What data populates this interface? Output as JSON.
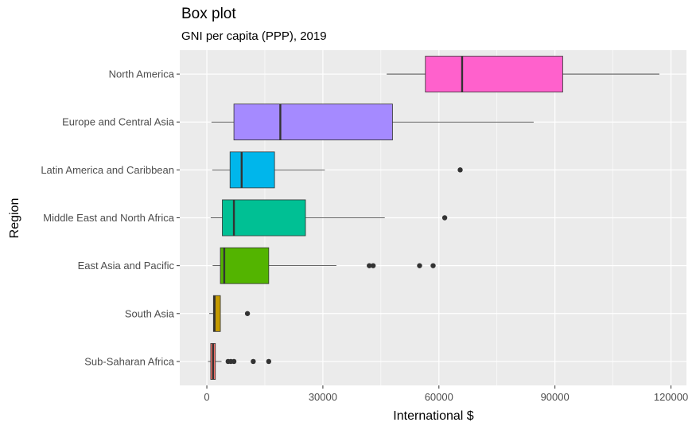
{
  "chart_data": {
    "type": "boxplot",
    "orientation": "horizontal",
    "title": "Box plot",
    "subtitle": "GNI per capita (PPP), 2019",
    "xlabel": "International $",
    "ylabel": "Region",
    "xlim": [
      -7000,
      124000
    ],
    "xticks": [
      0,
      30000,
      60000,
      90000,
      120000
    ],
    "xtick_labels": [
      "0",
      "30000",
      "60000",
      "90000",
      "120000"
    ],
    "grid": true,
    "legend": "none",
    "categories": [
      {
        "name": "North America",
        "color": "#FF61CC",
        "whisker_low": 46500,
        "q1": 56500,
        "median": 66000,
        "q3": 92000,
        "whisker_high": 117000,
        "outliers": []
      },
      {
        "name": "Europe and Central Asia",
        "color": "#A58AFF",
        "whisker_low": 1200,
        "q1": 7000,
        "median": 19000,
        "q3": 48000,
        "whisker_high": 84500,
        "outliers": []
      },
      {
        "name": "Latin America and Caribbean",
        "color": "#00B6EB",
        "whisker_low": 1400,
        "q1": 6000,
        "median": 9000,
        "q3": 17500,
        "whisker_high": 30500,
        "outliers": [
          65500
        ]
      },
      {
        "name": "Middle East and North Africa",
        "color": "#00C094",
        "whisker_low": 1000,
        "q1": 4000,
        "median": 7000,
        "q3": 25500,
        "whisker_high": 46000,
        "outliers": [
          61500
        ]
      },
      {
        "name": "East Asia and Pacific",
        "color": "#53B400",
        "whisker_low": 1500,
        "q1": 3500,
        "median": 4500,
        "q3": 16000,
        "whisker_high": 33500,
        "outliers": [
          42000,
          43000,
          55000,
          58500
        ]
      },
      {
        "name": "South Asia",
        "color": "#C49A00",
        "whisker_low": 600,
        "q1": 1700,
        "median": 2000,
        "q3": 3500,
        "whisker_high": 3500,
        "outliers": [
          10500
        ]
      },
      {
        "name": "Sub-Saharan Africa",
        "color": "#F8766D",
        "whisker_low": 300,
        "q1": 1000,
        "median": 1600,
        "q3": 2200,
        "whisker_high": 3800,
        "outliers": [
          5500,
          6200,
          7000,
          12000,
          16000
        ]
      }
    ]
  },
  "colors": {
    "panel_background": "#EBEBEB",
    "grid_major": "#FFFFFF",
    "box_outline": "#333333",
    "outlier": "#333333"
  }
}
